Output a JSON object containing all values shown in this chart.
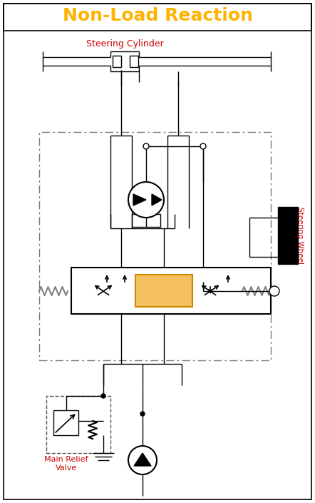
{
  "title": "Non-Load Reaction",
  "title_color": "#FFB300",
  "bg_color": "#FFFFFF",
  "label_steering_cylinder": "Steering Cylinder",
  "label_steering_wheel": "Steering Wheel",
  "label_main_relief": "Main Relief\nValve",
  "label_color_red": "#CC0000",
  "fig_width": 4.42,
  "fig_height": 7.05,
  "dpi": 100
}
